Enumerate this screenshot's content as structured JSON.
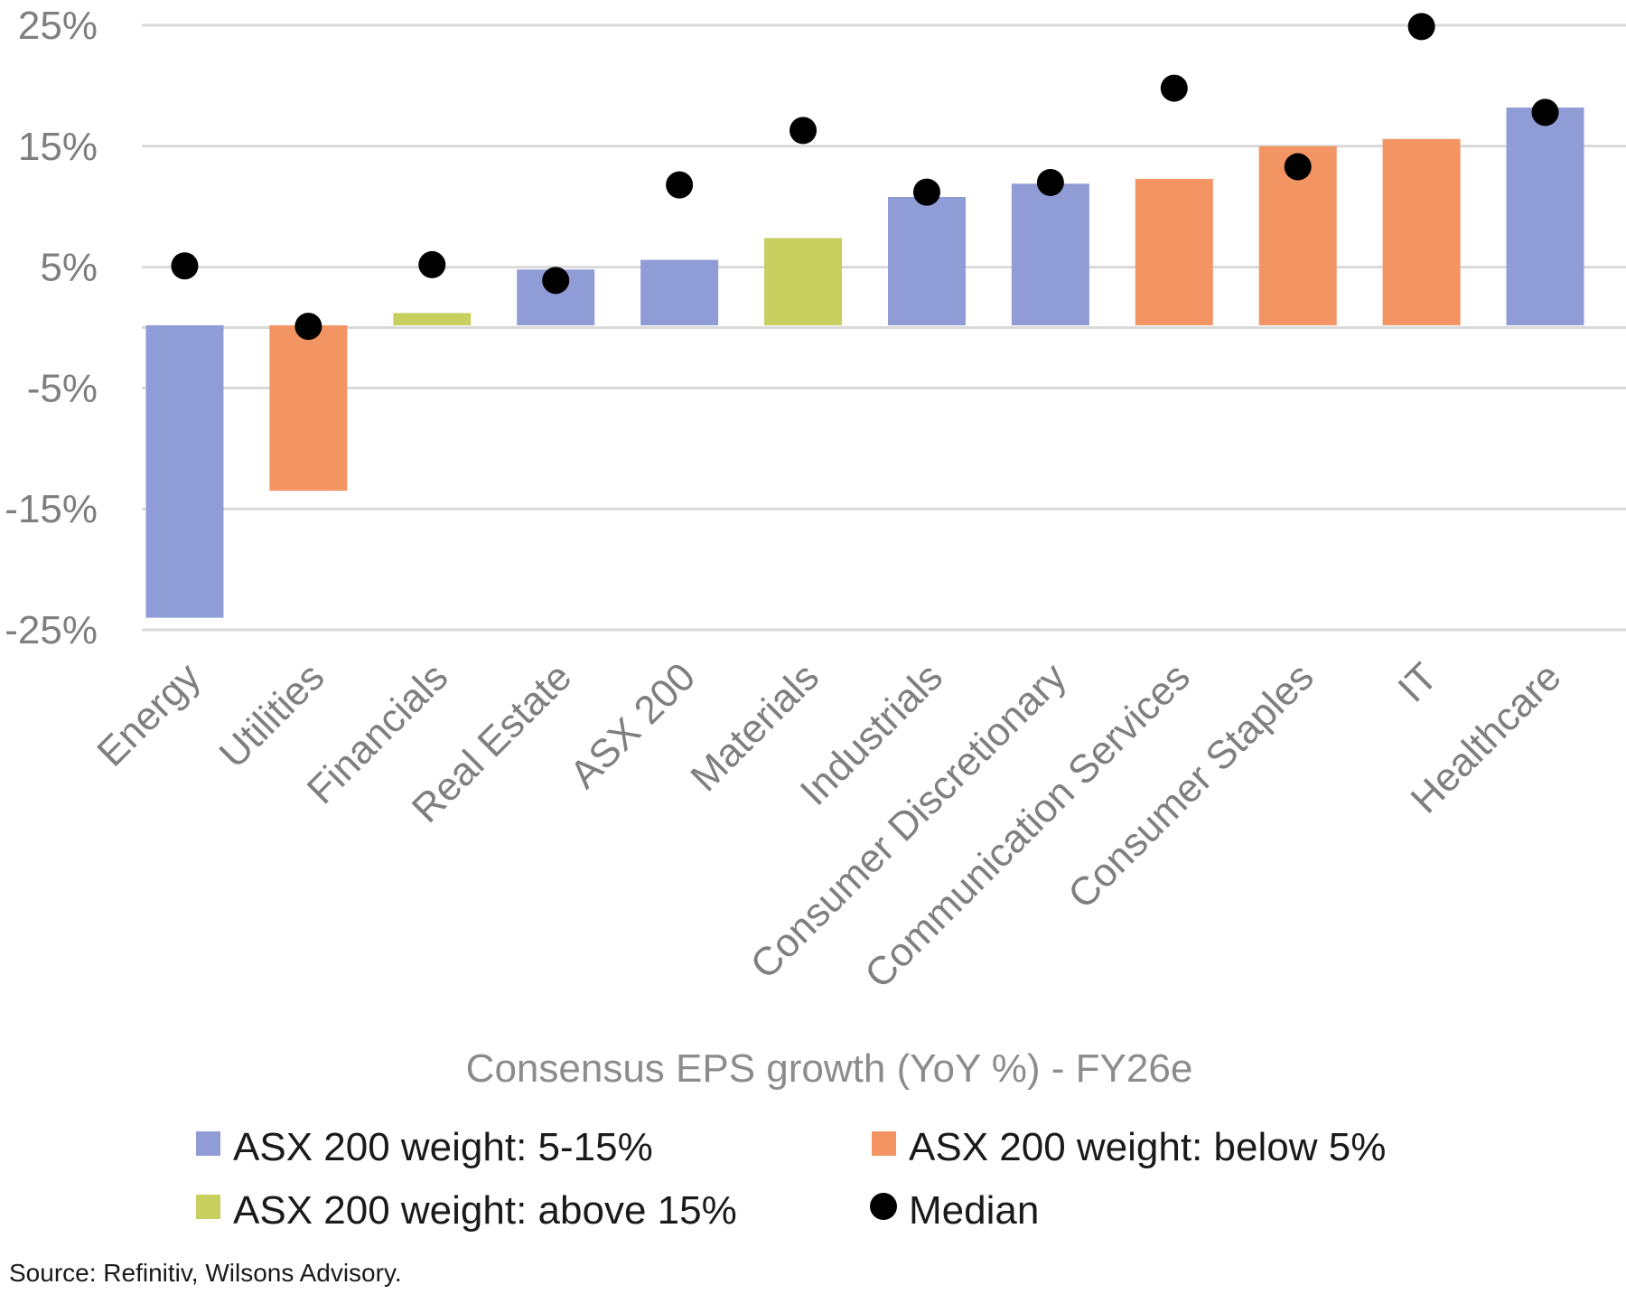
{
  "chart_data": {
    "type": "bar",
    "title": "",
    "xlabel": "Consensus EPS growth (YoY %) - FY26e",
    "ylabel": "",
    "ylim": [
      -25,
      25
    ],
    "yticks": [
      25,
      15,
      5,
      -5,
      -15,
      -25
    ],
    "ytick_labels": [
      "25%",
      "15%",
      "5%",
      "-5%",
      "-15%",
      "-25%"
    ],
    "grid": true,
    "categories": [
      "Energy",
      "Utilities",
      "Financials",
      "Real Estate",
      "ASX 200",
      "Materials",
      "Industrials",
      "Consumer Discretionary",
      "Communication Services",
      "Consumer Staples",
      "IT",
      "Healthcare"
    ],
    "series": [
      {
        "name": "EPS growth",
        "type": "bar",
        "values": [
          -24.0,
          -13.5,
          1.2,
          4.8,
          5.6,
          7.4,
          10.8,
          11.9,
          12.3,
          15.0,
          15.6,
          18.2
        ],
        "weight_group": [
          "mid",
          "low",
          "high",
          "mid",
          "mid",
          "high",
          "mid",
          "mid",
          "low",
          "low",
          "low",
          "mid"
        ]
      },
      {
        "name": "Median",
        "type": "scatter",
        "values": [
          5.1,
          0.1,
          5.2,
          3.9,
          11.8,
          16.3,
          11.2,
          12.0,
          19.8,
          13.3,
          24.9,
          17.8
        ]
      }
    ],
    "group_colors": {
      "mid": "#8f9cd6",
      "low": "#f39463",
      "high": "#c7cf5e"
    },
    "marker_color": "#000000",
    "legend": {
      "placement": "bottom",
      "items": [
        {
          "label": "ASX 200 weight: 5-15%",
          "color": "#8f9cd6",
          "shape": "square"
        },
        {
          "label": "ASX 200 weight: below 5%",
          "color": "#f39463",
          "shape": "square"
        },
        {
          "label": "ASX 200 weight: above 15%",
          "color": "#c7cf5e",
          "shape": "square"
        },
        {
          "label": "Median",
          "color": "#000000",
          "shape": "circle"
        }
      ]
    },
    "source": "Source: Refinitiv, Wilsons Advisory."
  }
}
